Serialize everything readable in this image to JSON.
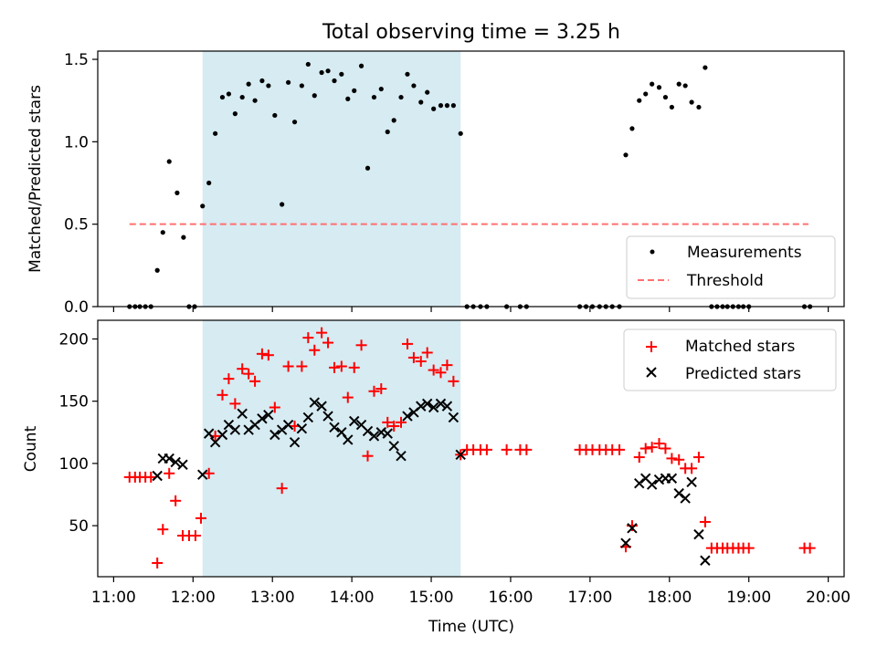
{
  "title": "Total observing time = 3.25 h",
  "colors": {
    "shade": "#add8e6",
    "measurement": "#000000",
    "threshold": "#ff7070",
    "matched": "#ff0000",
    "predicted": "#000000"
  },
  "chart_data": [
    {
      "type": "scatter",
      "panel": "top",
      "title": "Total observing time = 3.25 h",
      "ylabel": "Matched/Predicted stars",
      "xlabel": "",
      "x_unit": "time of day (UTC, decimal hours)",
      "xlim": [
        10.8,
        20.2
      ],
      "ylim": [
        0,
        1.55
      ],
      "yticks": [
        0,
        0.5,
        1.0,
        1.5
      ],
      "ytick_labels": [
        "0.0",
        "0.5",
        "1.0",
        "1.5"
      ],
      "shaded_interval": [
        12.12,
        15.37
      ],
      "legend_position": "lower-right",
      "legend": [
        "Measurements",
        "Threshold"
      ],
      "threshold": {
        "name": "Threshold",
        "y": 0.5,
        "x_range": [
          11.2,
          19.75
        ]
      },
      "series": [
        {
          "name": "Measurements",
          "points": [
            [
              11.2,
              0
            ],
            [
              11.27,
              0
            ],
            [
              11.33,
              0
            ],
            [
              11.4,
              0
            ],
            [
              11.47,
              0
            ],
            [
              11.55,
              0.22
            ],
            [
              11.62,
              0.45
            ],
            [
              11.7,
              0.88
            ],
            [
              11.8,
              0.69
            ],
            [
              11.88,
              0.42
            ],
            [
              11.95,
              0
            ],
            [
              12.02,
              0
            ],
            [
              12.12,
              0.61
            ],
            [
              12.2,
              0.75
            ],
            [
              12.28,
              1.05
            ],
            [
              12.37,
              1.27
            ],
            [
              12.45,
              1.29
            ],
            [
              12.53,
              1.17
            ],
            [
              12.62,
              1.27
            ],
            [
              12.7,
              1.35
            ],
            [
              12.78,
              1.25
            ],
            [
              12.87,
              1.37
            ],
            [
              12.95,
              1.34
            ],
            [
              13.03,
              1.16
            ],
            [
              13.12,
              0.62
            ],
            [
              13.2,
              1.36
            ],
            [
              13.28,
              1.12
            ],
            [
              13.37,
              1.34
            ],
            [
              13.45,
              1.47
            ],
            [
              13.53,
              1.28
            ],
            [
              13.62,
              1.42
            ],
            [
              13.7,
              1.43
            ],
            [
              13.78,
              1.37
            ],
            [
              13.87,
              1.41
            ],
            [
              13.95,
              1.26
            ],
            [
              14.03,
              1.31
            ],
            [
              14.12,
              1.46
            ],
            [
              14.2,
              0.84
            ],
            [
              14.28,
              1.27
            ],
            [
              14.37,
              1.32
            ],
            [
              14.45,
              1.06
            ],
            [
              14.53,
              1.13
            ],
            [
              14.62,
              1.27
            ],
            [
              14.7,
              1.41
            ],
            [
              14.78,
              1.34
            ],
            [
              14.87,
              1.24
            ],
            [
              14.95,
              1.3
            ],
            [
              15.03,
              1.2
            ],
            [
              15.12,
              1.22
            ],
            [
              15.2,
              1.22
            ],
            [
              15.28,
              1.22
            ],
            [
              15.37,
              1.05
            ],
            [
              15.45,
              0
            ],
            [
              15.53,
              0
            ],
            [
              15.62,
              0
            ],
            [
              15.7,
              0
            ],
            [
              15.95,
              0
            ],
            [
              16.12,
              0
            ],
            [
              16.2,
              0
            ],
            [
              16.87,
              0
            ],
            [
              16.95,
              0
            ],
            [
              17.03,
              0
            ],
            [
              17.12,
              0
            ],
            [
              17.2,
              0
            ],
            [
              17.28,
              0
            ],
            [
              17.37,
              0
            ],
            [
              17.45,
              0.92
            ],
            [
              17.53,
              1.08
            ],
            [
              17.62,
              1.25
            ],
            [
              17.7,
              1.29
            ],
            [
              17.78,
              1.35
            ],
            [
              17.87,
              1.33
            ],
            [
              17.95,
              1.27
            ],
            [
              18.03,
              1.21
            ],
            [
              18.12,
              1.35
            ],
            [
              18.2,
              1.34
            ],
            [
              18.28,
              1.24
            ],
            [
              18.37,
              1.21
            ],
            [
              18.45,
              1.45
            ],
            [
              18.53,
              0
            ],
            [
              18.6,
              0
            ],
            [
              18.67,
              0
            ],
            [
              18.73,
              0
            ],
            [
              18.8,
              0
            ],
            [
              18.87,
              0
            ],
            [
              18.93,
              0
            ],
            [
              19.0,
              0
            ],
            [
              19.7,
              0
            ],
            [
              19.77,
              0
            ]
          ]
        }
      ]
    },
    {
      "type": "scatter",
      "panel": "bottom",
      "title": "",
      "xlabel": "Time (UTC)",
      "ylabel": "Count",
      "x_unit": "time of day (UTC, decimal hours)",
      "xlim": [
        10.8,
        20.2
      ],
      "ylim": [
        9,
        215
      ],
      "yticks": [
        50,
        100,
        150,
        200
      ],
      "ytick_labels": [
        "50",
        "100",
        "150",
        "200"
      ],
      "xticks": [
        11,
        12,
        13,
        14,
        15,
        16,
        17,
        18,
        19,
        20
      ],
      "xtick_labels": [
        "11:00",
        "12:00",
        "13:00",
        "14:00",
        "15:00",
        "16:00",
        "17:00",
        "18:00",
        "19:00",
        "20:00"
      ],
      "shaded_interval": [
        12.12,
        15.37
      ],
      "legend_position": "upper-right",
      "legend": [
        "Matched stars",
        "Predicted stars"
      ],
      "series": [
        {
          "name": "Matched stars",
          "marker": "plus",
          "points": [
            [
              11.2,
              89
            ],
            [
              11.27,
              89
            ],
            [
              11.33,
              89
            ],
            [
              11.4,
              89
            ],
            [
              11.47,
              89
            ],
            [
              11.55,
              20
            ],
            [
              11.62,
              47
            ],
            [
              11.7,
              92
            ],
            [
              11.78,
              70
            ],
            [
              11.87,
              42
            ],
            [
              11.95,
              42
            ],
            [
              12.03,
              42
            ],
            [
              12.1,
              56
            ],
            [
              12.2,
              92
            ],
            [
              12.28,
              122
            ],
            [
              12.37,
              155
            ],
            [
              12.45,
              168
            ],
            [
              12.53,
              148
            ],
            [
              12.62,
              176
            ],
            [
              12.7,
              172
            ],
            [
              12.78,
              166
            ],
            [
              12.87,
              188
            ],
            [
              12.95,
              187
            ],
            [
              13.03,
              145
            ],
            [
              13.12,
              80
            ],
            [
              13.2,
              178
            ],
            [
              13.28,
              130
            ],
            [
              13.37,
              178
            ],
            [
              13.45,
              201
            ],
            [
              13.53,
              191
            ],
            [
              13.62,
              205
            ],
            [
              13.7,
              197
            ],
            [
              13.78,
              177
            ],
            [
              13.87,
              178
            ],
            [
              13.95,
              153
            ],
            [
              14.03,
              177
            ],
            [
              14.12,
              195
            ],
            [
              14.2,
              106
            ],
            [
              14.28,
              158
            ],
            [
              14.37,
              160
            ],
            [
              14.45,
              133
            ],
            [
              14.53,
              130
            ],
            [
              14.62,
              133
            ],
            [
              14.7,
              196
            ],
            [
              14.78,
              185
            ],
            [
              14.87,
              182
            ],
            [
              14.95,
              189
            ],
            [
              15.03,
              175
            ],
            [
              15.12,
              173
            ],
            [
              15.2,
              179
            ],
            [
              15.28,
              166
            ],
            [
              15.37,
              107
            ],
            [
              15.45,
              111
            ],
            [
              15.53,
              111
            ],
            [
              15.62,
              111
            ],
            [
              15.7,
              111
            ],
            [
              15.95,
              111
            ],
            [
              16.12,
              111
            ],
            [
              16.2,
              111
            ],
            [
              16.87,
              111
            ],
            [
              16.95,
              111
            ],
            [
              17.03,
              111
            ],
            [
              17.12,
              111
            ],
            [
              17.2,
              111
            ],
            [
              17.28,
              111
            ],
            [
              17.37,
              111
            ],
            [
              17.45,
              33
            ],
            [
              17.53,
              50
            ],
            [
              17.62,
              105
            ],
            [
              17.7,
              112
            ],
            [
              17.78,
              113
            ],
            [
              17.87,
              116
            ],
            [
              17.95,
              112
            ],
            [
              18.03,
              104
            ],
            [
              18.12,
              103
            ],
            [
              18.2,
              96
            ],
            [
              18.28,
              96
            ],
            [
              18.37,
              105
            ],
            [
              18.45,
              53
            ],
            [
              18.53,
              32
            ],
            [
              18.6,
              32
            ],
            [
              18.67,
              32
            ],
            [
              18.73,
              32
            ],
            [
              18.8,
              32
            ],
            [
              18.87,
              32
            ],
            [
              18.93,
              32
            ],
            [
              19.0,
              32
            ],
            [
              19.7,
              32
            ],
            [
              19.77,
              32
            ]
          ]
        },
        {
          "name": "Predicted stars",
          "marker": "x",
          "points": [
            [
              11.55,
              90
            ],
            [
              11.62,
              104
            ],
            [
              11.7,
              104
            ],
            [
              11.78,
              101
            ],
            [
              11.87,
              99
            ],
            [
              12.12,
              91
            ],
            [
              12.2,
              124
            ],
            [
              12.28,
              117
            ],
            [
              12.37,
              123
            ],
            [
              12.45,
              131
            ],
            [
              12.53,
              127
            ],
            [
              12.62,
              140
            ],
            [
              12.7,
              127
            ],
            [
              12.78,
              131
            ],
            [
              12.87,
              136
            ],
            [
              12.95,
              139
            ],
            [
              13.03,
              123
            ],
            [
              13.12,
              127
            ],
            [
              13.2,
              131
            ],
            [
              13.28,
              117
            ],
            [
              13.37,
              128
            ],
            [
              13.45,
              137
            ],
            [
              13.53,
              149
            ],
            [
              13.62,
              146
            ],
            [
              13.7,
              138
            ],
            [
              13.78,
              129
            ],
            [
              13.87,
              125
            ],
            [
              13.95,
              119
            ],
            [
              14.03,
              134
            ],
            [
              14.12,
              131
            ],
            [
              14.2,
              126
            ],
            [
              14.28,
              122
            ],
            [
              14.37,
              125
            ],
            [
              14.45,
              124
            ],
            [
              14.53,
              114
            ],
            [
              14.62,
              106
            ],
            [
              14.7,
              138
            ],
            [
              14.78,
              141
            ],
            [
              14.87,
              146
            ],
            [
              14.95,
              148
            ],
            [
              15.03,
              145
            ],
            [
              15.12,
              148
            ],
            [
              15.2,
              146
            ],
            [
              15.28,
              137
            ],
            [
              15.37,
              107
            ],
            [
              17.45,
              36
            ],
            [
              17.53,
              48
            ],
            [
              17.62,
              84
            ],
            [
              17.7,
              88
            ],
            [
              17.78,
              83
            ],
            [
              17.87,
              87
            ],
            [
              17.95,
              88
            ],
            [
              18.03,
              88
            ],
            [
              18.12,
              76
            ],
            [
              18.2,
              72
            ],
            [
              18.28,
              85
            ],
            [
              18.37,
              43
            ],
            [
              18.45,
              22
            ]
          ]
        }
      ]
    }
  ]
}
